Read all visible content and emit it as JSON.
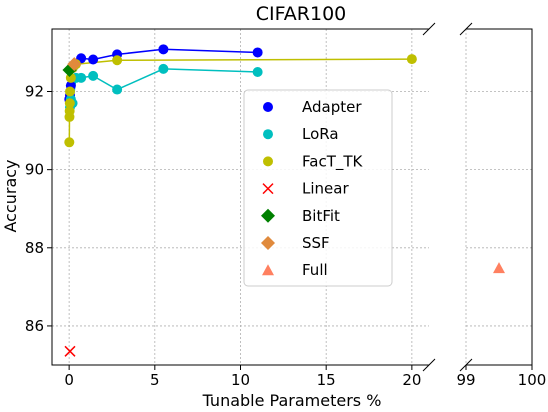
{
  "chart_data": {
    "type": "scatter",
    "title": "CIFAR100",
    "xlabel": "Tunable Parameters %",
    "ylabel": "Accuracy",
    "broken_x_axis": true,
    "panels": [
      {
        "name": "left",
        "xlim": [
          -1,
          21
        ],
        "xticks": [
          0,
          5,
          10,
          15,
          20
        ]
      },
      {
        "name": "right",
        "xlim": [
          99,
          100
        ],
        "xticks": [
          99,
          100
        ]
      }
    ],
    "ylim": [
      85,
      93.6
    ],
    "yticks": [
      86,
      88,
      90,
      92
    ],
    "grid": true,
    "legend_position": "center-right",
    "series": [
      {
        "name": "Adapter",
        "marker": "circle",
        "color": "#0000ff",
        "connected": true,
        "x": [
          0.01,
          0.05,
          0.1,
          0.2,
          0.7,
          1.4,
          2.8,
          5.5,
          11.0
        ],
        "y": [
          91.8,
          91.9,
          92.15,
          92.6,
          92.85,
          92.82,
          92.95,
          93.08,
          93.0
        ]
      },
      {
        "name": "LoRa",
        "marker": "circle",
        "color": "#00bfbf",
        "connected": true,
        "x": [
          0.05,
          0.1,
          0.2,
          0.4,
          0.7,
          1.4,
          2.8,
          5.5,
          11.0
        ],
        "y": [
          91.6,
          91.8,
          91.7,
          92.35,
          92.35,
          92.4,
          92.05,
          92.58,
          92.5
        ]
      },
      {
        "name": "FacT_TK",
        "marker": "circle",
        "color": "#bfbf00",
        "connected": true,
        "x": [
          0.01,
          0.02,
          0.03,
          0.04,
          0.05,
          0.1,
          0.2,
          0.4,
          2.8,
          20.0
        ],
        "y": [
          90.7,
          91.35,
          91.5,
          91.7,
          92.0,
          92.35,
          92.6,
          92.7,
          92.8,
          92.83
        ]
      },
      {
        "name": "Linear",
        "marker": "x",
        "color": "#ff0000",
        "connected": false,
        "x": [
          0.05
        ],
        "y": [
          85.35
        ]
      },
      {
        "name": "BitFit",
        "marker": "diamond",
        "color": "#008000",
        "connected": false,
        "x": [
          0.02
        ],
        "y": [
          92.55
        ]
      },
      {
        "name": "SSF",
        "marker": "diamond",
        "color": "#e08a3c",
        "connected": false,
        "x": [
          0.3
        ],
        "y": [
          92.7
        ]
      },
      {
        "name": "Full",
        "marker": "triangle",
        "color": "#ff8060",
        "connected": false,
        "x": [
          99.5
        ],
        "y": [
          87.48
        ]
      }
    ]
  }
}
